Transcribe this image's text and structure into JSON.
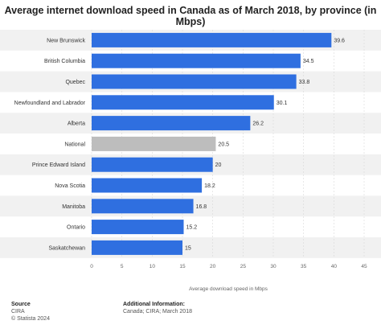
{
  "chart_data": {
    "type": "bar",
    "orientation": "horizontal",
    "title": "Average internet download speed in Canada as of March 2018, by province (in Mbps)",
    "xlabel": "Average download speed in Mbps",
    "ylabel": "",
    "xlim": [
      0,
      45
    ],
    "x_ticks": [
      "0",
      "5",
      "10",
      "15",
      "20",
      "25",
      "30",
      "35",
      "40",
      "45"
    ],
    "grid": true,
    "categories": [
      "New Brunswick",
      "British Columbia",
      "Quebec",
      "Newfoundland and Labrador",
      "Alberta",
      "National",
      "Prince Edward Island",
      "Nova Scotia",
      "Manitoba",
      "Ontario",
      "Saskatchewan"
    ],
    "values": [
      39.6,
      34.5,
      33.8,
      30.1,
      26.2,
      20.5,
      20,
      18.2,
      16.8,
      15.2,
      15
    ],
    "value_labels": [
      "39.6",
      "34.5",
      "33.8",
      "30.1",
      "26.2",
      "20.5",
      "20",
      "18.2",
      "16.8",
      "15.2",
      "15"
    ],
    "highlight_category": "National",
    "colors": {
      "bar": "#2f6fe0",
      "highlight": "#bdbdbd",
      "grid": "#d9d9d9",
      "band": "#f1f1f1"
    }
  },
  "footer": {
    "source_heading": "Source",
    "source_lines": [
      "CIRA",
      "© Statista 2024"
    ],
    "info_heading": "Additional Information:",
    "info_lines": [
      "Canada; CIRA; March 2018"
    ]
  }
}
